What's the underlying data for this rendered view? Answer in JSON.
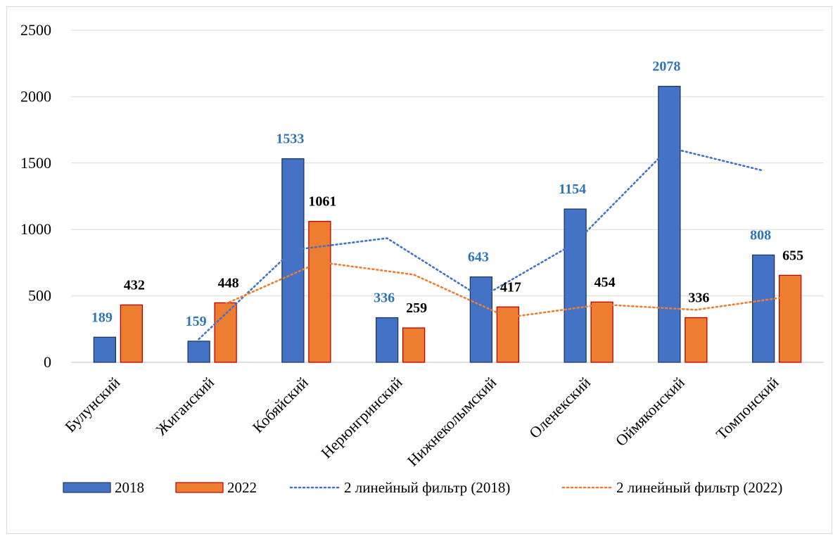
{
  "chart_data": {
    "type": "bar",
    "categories": [
      "Булунский",
      "Жиганский",
      "Кобяйский",
      "Нерюнгринский",
      "Нижнеколымский",
      "Оленекский",
      "Оймяконский",
      "Томпонский"
    ],
    "series": [
      {
        "name": "2018",
        "values": [
          189,
          159,
          1533,
          336,
          643,
          1154,
          2078,
          808
        ],
        "color": "#4472c4",
        "label_color": "#2e75b6"
      },
      {
        "name": "2022",
        "values": [
          432,
          448,
          1061,
          259,
          417,
          454,
          336,
          655
        ],
        "color": "#ed7d31",
        "label_color": "#000000"
      }
    ],
    "trendlines": [
      {
        "name": "2 линейный фильтр (2018)",
        "type": "moving-average",
        "period": 2,
        "source_series": 0,
        "color": "#4472c4"
      },
      {
        "name": "2 линейный фильтр (2022)",
        "type": "moving-average",
        "period": 2,
        "source_series": 1,
        "color": "#ed7d31"
      }
    ],
    "ylim": [
      0,
      2500
    ],
    "yticks": [
      0,
      500,
      1000,
      1500,
      2000,
      2500
    ],
    "grid": true,
    "legend": "bottom"
  }
}
